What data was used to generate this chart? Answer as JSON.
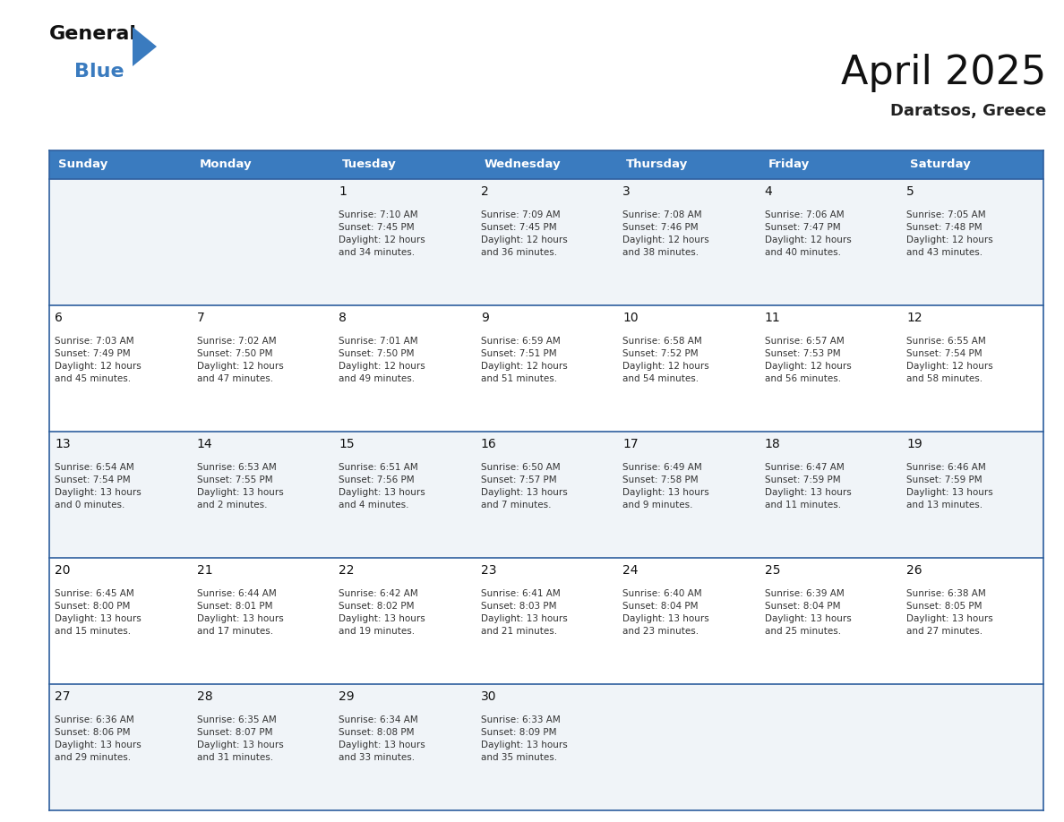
{
  "title": "April 2025",
  "subtitle": "Daratsos, Greece",
  "header_color": "#3a7bbf",
  "header_text_color": "#ffffff",
  "day_names": [
    "Sunday",
    "Monday",
    "Tuesday",
    "Wednesday",
    "Thursday",
    "Friday",
    "Saturday"
  ],
  "cell_bg_odd": "#f0f4f8",
  "cell_bg_even": "#ffffff",
  "border_color": "#2e5f9e",
  "text_color": "#333333",
  "number_color": "#111111",
  "weeks": [
    [
      {
        "day": null,
        "info": null
      },
      {
        "day": null,
        "info": null
      },
      {
        "day": 1,
        "info": "Sunrise: 7:10 AM\nSunset: 7:45 PM\nDaylight: 12 hours\nand 34 minutes."
      },
      {
        "day": 2,
        "info": "Sunrise: 7:09 AM\nSunset: 7:45 PM\nDaylight: 12 hours\nand 36 minutes."
      },
      {
        "day": 3,
        "info": "Sunrise: 7:08 AM\nSunset: 7:46 PM\nDaylight: 12 hours\nand 38 minutes."
      },
      {
        "day": 4,
        "info": "Sunrise: 7:06 AM\nSunset: 7:47 PM\nDaylight: 12 hours\nand 40 minutes."
      },
      {
        "day": 5,
        "info": "Sunrise: 7:05 AM\nSunset: 7:48 PM\nDaylight: 12 hours\nand 43 minutes."
      }
    ],
    [
      {
        "day": 6,
        "info": "Sunrise: 7:03 AM\nSunset: 7:49 PM\nDaylight: 12 hours\nand 45 minutes."
      },
      {
        "day": 7,
        "info": "Sunrise: 7:02 AM\nSunset: 7:50 PM\nDaylight: 12 hours\nand 47 minutes."
      },
      {
        "day": 8,
        "info": "Sunrise: 7:01 AM\nSunset: 7:50 PM\nDaylight: 12 hours\nand 49 minutes."
      },
      {
        "day": 9,
        "info": "Sunrise: 6:59 AM\nSunset: 7:51 PM\nDaylight: 12 hours\nand 51 minutes."
      },
      {
        "day": 10,
        "info": "Sunrise: 6:58 AM\nSunset: 7:52 PM\nDaylight: 12 hours\nand 54 minutes."
      },
      {
        "day": 11,
        "info": "Sunrise: 6:57 AM\nSunset: 7:53 PM\nDaylight: 12 hours\nand 56 minutes."
      },
      {
        "day": 12,
        "info": "Sunrise: 6:55 AM\nSunset: 7:54 PM\nDaylight: 12 hours\nand 58 minutes."
      }
    ],
    [
      {
        "day": 13,
        "info": "Sunrise: 6:54 AM\nSunset: 7:54 PM\nDaylight: 13 hours\nand 0 minutes."
      },
      {
        "day": 14,
        "info": "Sunrise: 6:53 AM\nSunset: 7:55 PM\nDaylight: 13 hours\nand 2 minutes."
      },
      {
        "day": 15,
        "info": "Sunrise: 6:51 AM\nSunset: 7:56 PM\nDaylight: 13 hours\nand 4 minutes."
      },
      {
        "day": 16,
        "info": "Sunrise: 6:50 AM\nSunset: 7:57 PM\nDaylight: 13 hours\nand 7 minutes."
      },
      {
        "day": 17,
        "info": "Sunrise: 6:49 AM\nSunset: 7:58 PM\nDaylight: 13 hours\nand 9 minutes."
      },
      {
        "day": 18,
        "info": "Sunrise: 6:47 AM\nSunset: 7:59 PM\nDaylight: 13 hours\nand 11 minutes."
      },
      {
        "day": 19,
        "info": "Sunrise: 6:46 AM\nSunset: 7:59 PM\nDaylight: 13 hours\nand 13 minutes."
      }
    ],
    [
      {
        "day": 20,
        "info": "Sunrise: 6:45 AM\nSunset: 8:00 PM\nDaylight: 13 hours\nand 15 minutes."
      },
      {
        "day": 21,
        "info": "Sunrise: 6:44 AM\nSunset: 8:01 PM\nDaylight: 13 hours\nand 17 minutes."
      },
      {
        "day": 22,
        "info": "Sunrise: 6:42 AM\nSunset: 8:02 PM\nDaylight: 13 hours\nand 19 minutes."
      },
      {
        "day": 23,
        "info": "Sunrise: 6:41 AM\nSunset: 8:03 PM\nDaylight: 13 hours\nand 21 minutes."
      },
      {
        "day": 24,
        "info": "Sunrise: 6:40 AM\nSunset: 8:04 PM\nDaylight: 13 hours\nand 23 minutes."
      },
      {
        "day": 25,
        "info": "Sunrise: 6:39 AM\nSunset: 8:04 PM\nDaylight: 13 hours\nand 25 minutes."
      },
      {
        "day": 26,
        "info": "Sunrise: 6:38 AM\nSunset: 8:05 PM\nDaylight: 13 hours\nand 27 minutes."
      }
    ],
    [
      {
        "day": 27,
        "info": "Sunrise: 6:36 AM\nSunset: 8:06 PM\nDaylight: 13 hours\nand 29 minutes."
      },
      {
        "day": 28,
        "info": "Sunrise: 6:35 AM\nSunset: 8:07 PM\nDaylight: 13 hours\nand 31 minutes."
      },
      {
        "day": 29,
        "info": "Sunrise: 6:34 AM\nSunset: 8:08 PM\nDaylight: 13 hours\nand 33 minutes."
      },
      {
        "day": 30,
        "info": "Sunrise: 6:33 AM\nSunset: 8:09 PM\nDaylight: 13 hours\nand 35 minutes."
      },
      {
        "day": null,
        "info": null
      },
      {
        "day": null,
        "info": null
      },
      {
        "day": null,
        "info": null
      }
    ]
  ]
}
